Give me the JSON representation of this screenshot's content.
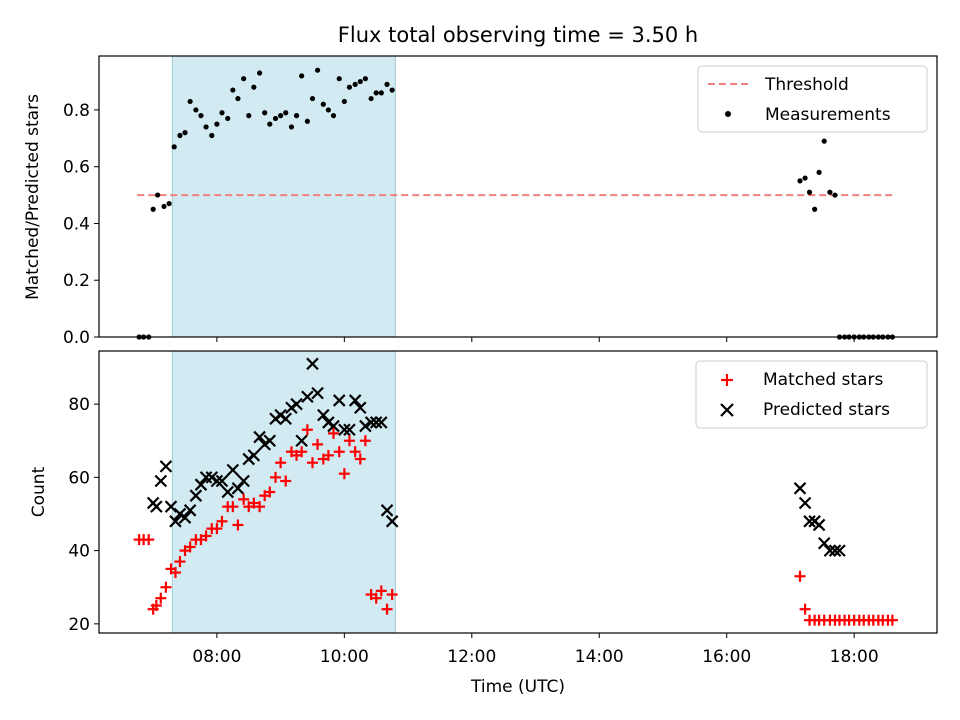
{
  "chart_data": [
    {
      "type": "scatter",
      "title": "Flux total observing time = 3.50 h",
      "xlabel": "",
      "ylabel": "Matched/Predicted stars",
      "xlim": [
        6.15,
        19.3
      ],
      "ylim": [
        0,
        0.99
      ],
      "yticks": [
        0.0,
        0.2,
        0.4,
        0.6,
        0.8
      ],
      "ytick_labels": [
        "0.0",
        "0.2",
        "0.4",
        "0.6",
        "0.8"
      ],
      "xticks": [
        8,
        10,
        12,
        14,
        16,
        18
      ],
      "shaded_span": [
        7.3,
        10.8
      ],
      "legend": {
        "position": "upper right",
        "threshold_label": "Threshold",
        "measurements_label": "Measurements"
      },
      "threshold": {
        "y": 0.5,
        "x": [
          6.75,
          18.6
        ],
        "color": "#f08080"
      },
      "series": [
        {
          "name": "Measurements",
          "marker": "dot",
          "color": "#000000",
          "x": [
            6.78,
            6.85,
            6.93,
            7.0,
            7.07,
            7.17,
            7.25,
            7.33,
            7.42,
            7.5,
            7.58,
            7.67,
            7.75,
            7.83,
            7.92,
            8.0,
            8.08,
            8.17,
            8.25,
            8.33,
            8.42,
            8.5,
            8.58,
            8.67,
            8.75,
            8.83,
            8.92,
            9.0,
            9.08,
            9.17,
            9.25,
            9.33,
            9.42,
            9.5,
            9.58,
            9.67,
            9.75,
            9.83,
            9.92,
            10.0,
            10.08,
            10.17,
            10.25,
            10.33,
            10.42,
            10.5,
            10.58,
            10.67,
            10.75,
            17.15,
            17.23,
            17.3,
            17.38,
            17.45,
            17.53,
            17.62,
            17.7,
            17.77,
            17.85,
            17.92,
            18.0,
            18.08,
            18.15,
            18.23,
            18.3,
            18.38,
            18.45,
            18.53,
            18.6
          ],
          "y": [
            0.0,
            0.0,
            0.0,
            0.45,
            0.5,
            0.46,
            0.47,
            0.67,
            0.71,
            0.72,
            0.83,
            0.8,
            0.78,
            0.74,
            0.71,
            0.75,
            0.79,
            0.77,
            0.87,
            0.84,
            0.91,
            0.78,
            0.88,
            0.93,
            0.79,
            0.75,
            0.77,
            0.78,
            0.79,
            0.74,
            0.78,
            0.92,
            0.76,
            0.84,
            0.94,
            0.82,
            0.8,
            0.78,
            0.91,
            0.83,
            0.88,
            0.89,
            0.9,
            0.91,
            0.84,
            0.86,
            0.86,
            0.89,
            0.87,
            0.55,
            0.56,
            0.51,
            0.45,
            0.58,
            0.69,
            0.51,
            0.5,
            0.0,
            0.0,
            0.0,
            0.0,
            0.0,
            0.0,
            0.0,
            0.0,
            0.0,
            0.0,
            0.0,
            0.0
          ]
        }
      ]
    },
    {
      "type": "scatter",
      "title": "",
      "xlabel": "Time (UTC)",
      "ylabel": "Count",
      "xlim": [
        6.15,
        19.3
      ],
      "ylim": [
        17.5,
        94.5
      ],
      "yticks": [
        20,
        40,
        60,
        80
      ],
      "ytick_labels": [
        "20",
        "40",
        "60",
        "80"
      ],
      "xticks": [
        8,
        10,
        12,
        14,
        16,
        18
      ],
      "xtick_labels": [
        "08:00",
        "10:00",
        "12:00",
        "14:00",
        "16:00",
        "18:00"
      ],
      "shaded_span": [
        7.3,
        10.8
      ],
      "legend": {
        "position": "upper right",
        "matched_label": "Matched stars",
        "predicted_label": "Predicted stars"
      },
      "series": [
        {
          "name": "Matched stars",
          "marker": "plus",
          "color": "#ff0000",
          "x": [
            6.78,
            6.85,
            6.93,
            7.0,
            7.05,
            7.12,
            7.2,
            7.28,
            7.35,
            7.42,
            7.5,
            7.58,
            7.67,
            7.75,
            7.83,
            7.92,
            8.0,
            8.08,
            8.17,
            8.25,
            8.33,
            8.42,
            8.5,
            8.58,
            8.67,
            8.75,
            8.83,
            8.92,
            9.0,
            9.08,
            9.17,
            9.25,
            9.33,
            9.42,
            9.5,
            9.58,
            9.67,
            9.75,
            9.83,
            9.92,
            10.0,
            10.08,
            10.17,
            10.25,
            10.33,
            10.42,
            10.5,
            10.58,
            10.67,
            10.75,
            17.15,
            17.23,
            17.3,
            17.38,
            17.45,
            17.53,
            17.62,
            17.7,
            17.77,
            17.85,
            17.92,
            18.0,
            18.08,
            18.15,
            18.23,
            18.3,
            18.38,
            18.45,
            18.53,
            18.6
          ],
          "y": [
            43,
            43,
            43,
            24,
            25,
            27,
            30,
            35,
            34,
            37,
            40,
            41,
            43,
            43,
            44,
            46,
            46,
            48,
            52,
            52,
            47,
            54,
            52,
            53,
            52,
            55,
            56,
            60,
            64,
            59,
            67,
            66,
            67,
            73,
            64,
            69,
            65,
            66,
            72,
            67,
            61,
            70,
            67,
            65,
            70,
            28,
            27,
            29,
            24,
            28,
            33,
            24,
            21,
            21,
            21,
            21,
            21,
            21,
            21,
            21,
            21,
            21,
            21,
            21,
            21,
            21,
            21,
            21,
            21,
            21
          ]
        },
        {
          "name": "Predicted stars",
          "marker": "x",
          "color": "#000000",
          "x": [
            7.0,
            7.05,
            7.12,
            7.2,
            7.28,
            7.35,
            7.42,
            7.5,
            7.58,
            7.67,
            7.75,
            7.83,
            7.92,
            8.0,
            8.08,
            8.17,
            8.25,
            8.33,
            8.42,
            8.5,
            8.58,
            8.67,
            8.75,
            8.83,
            8.92,
            9.0,
            9.08,
            9.17,
            9.25,
            9.33,
            9.42,
            9.5,
            9.58,
            9.67,
            9.75,
            9.83,
            9.92,
            10.0,
            10.08,
            10.17,
            10.25,
            10.33,
            10.42,
            10.5,
            10.58,
            10.67,
            10.75,
            17.15,
            17.23,
            17.3,
            17.38,
            17.45,
            17.53,
            17.62,
            17.7,
            17.77
          ],
          "y": [
            53,
            52,
            59,
            63,
            52,
            48,
            50,
            49,
            51,
            55,
            58,
            60,
            60,
            59,
            59,
            56,
            62,
            57,
            59,
            65,
            66,
            71,
            69,
            70,
            76,
            77,
            76,
            79,
            80,
            70,
            82,
            91,
            83,
            77,
            75,
            74,
            81,
            73,
            73,
            81,
            79,
            74,
            75,
            75,
            75,
            51,
            48,
            57,
            53,
            48,
            48,
            47,
            42,
            40,
            40,
            40
          ]
        }
      ]
    }
  ]
}
